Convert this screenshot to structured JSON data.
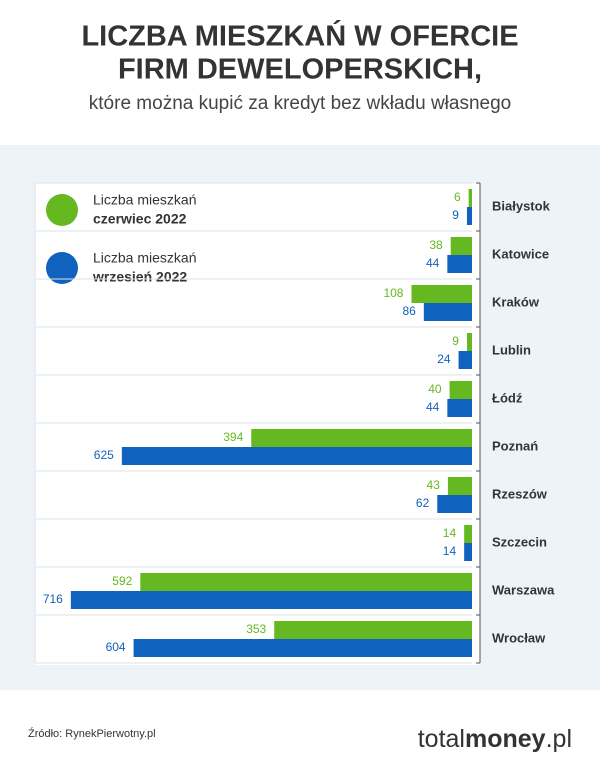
{
  "chart_data": {
    "type": "bar",
    "orientation": "horizontal",
    "title": [
      "LICZBA MIESZKAŃ W OFERCIE",
      "FIRM DEWELOPERSKICH,"
    ],
    "subtitle": "które można kupić za kredyt bez wkładu własnego",
    "categories": [
      "Białystok",
      "Katowice",
      "Kraków",
      "Lublin",
      "Łódź",
      "Poznań",
      "Rzeszów",
      "Szczecin",
      "Warszawa",
      "Wrocław"
    ],
    "series": [
      {
        "name": "Liczba mieszkań",
        "period": "czerwiec 2022",
        "color": "#66b821",
        "values": [
          6,
          38,
          108,
          9,
          40,
          394,
          43,
          14,
          592,
          353
        ]
      },
      {
        "name": "Liczba mieszkań",
        "period": "wrzesień 2022",
        "color": "#0f62bd",
        "values": [
          9,
          44,
          86,
          24,
          44,
          625,
          62,
          14,
          716,
          604
        ]
      }
    ],
    "xlim": [
      0,
      780
    ]
  },
  "footer": {
    "source": "Źródło: RynekPierwotny.pl",
    "logo": [
      "total",
      "money",
      ".pl"
    ]
  }
}
